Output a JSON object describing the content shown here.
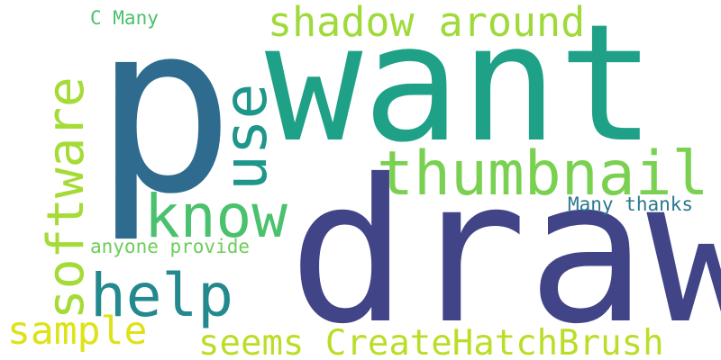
{
  "words": [
    {
      "id": "p",
      "text": "p",
      "color": "#2e6b8e"
    },
    {
      "id": "want",
      "text": "want",
      "color": "#1fa187"
    },
    {
      "id": "draw",
      "text": "draw",
      "color": "#414487"
    },
    {
      "id": "thumbnail",
      "text": "thumbnail",
      "color": "#7ad151"
    },
    {
      "id": "shadow_around",
      "text": "shadow around",
      "color": "#9fda3a"
    },
    {
      "id": "software",
      "text": "software",
      "color": "#a5db36"
    },
    {
      "id": "use",
      "text": "use",
      "color": "#1f968b"
    },
    {
      "id": "know",
      "text": "know",
      "color": "#4ac16d"
    },
    {
      "id": "help",
      "text": "help",
      "color": "#23898e"
    },
    {
      "id": "sample",
      "text": "sample",
      "color": "#dde318"
    },
    {
      "id": "seems_createhatchbrush",
      "text": "seems CreateHatchBrush",
      "color": "#bade28"
    },
    {
      "id": "c_many",
      "text": "C Many",
      "color": "#4ac16d"
    },
    {
      "id": "anyone_provide",
      "text": "anyone provide",
      "color": "#6ccd5a"
    },
    {
      "id": "many_thanks",
      "text": "Many thanks",
      "color": "#2a788e"
    }
  ]
}
